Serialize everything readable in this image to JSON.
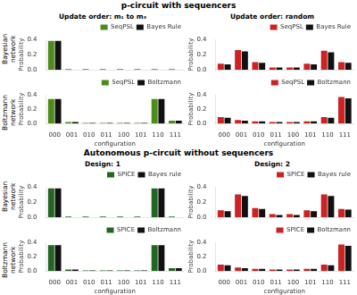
{
  "chart_data": [
    {
      "type": "bar",
      "annotations": [
        "p-circuit with sequencers"
      ],
      "title": "Update order: m₁ to m₃",
      "subtitle": "Bayesian\nnetwork",
      "categories": [
        "000",
        "001",
        "010",
        "011",
        "100",
        "101",
        "110",
        "111"
      ],
      "series": [
        {
          "name": "SeqPSL",
          "color": "#4c8c1a",
          "values": [
            0.38,
            0.01,
            0.01,
            0.01,
            0.01,
            0.01,
            0.01,
            0.01
          ]
        },
        {
          "name": "Bayes Rule",
          "color": "#111111",
          "values": [
            0.38,
            0.0,
            0.0,
            0.0,
            0.0,
            0.0,
            0.0,
            0.0
          ]
        }
      ],
      "ylabel": "Probability",
      "ylim": [
        0,
        0.4
      ],
      "yticks": [
        {
          "value": 0,
          "label": "0.0"
        },
        0.2,
        0.4
      ],
      "grid": false,
      "legend": "upper right",
      "tick_labels": "y"
    },
    {
      "type": "bar",
      "title": "Update order: random",
      "categories": [
        "000",
        "001",
        "010",
        "011",
        "100",
        "101",
        "110",
        "111"
      ],
      "series": [
        {
          "name": "SeqPSL",
          "color": "#cc2222",
          "values": [
            0.08,
            0.26,
            0.1,
            0.03,
            0.03,
            0.08,
            0.25,
            0.1
          ]
        },
        {
          "name": "Bayes Rule",
          "color": "#111111",
          "values": [
            0.07,
            0.24,
            0.09,
            0.03,
            0.03,
            0.07,
            0.23,
            0.09
          ]
        }
      ],
      "ylabel": "Probability",
      "ylim": [
        0,
        0.4
      ],
      "yticks": [
        {
          "value": 0,
          "label": "0.0"
        },
        0.2,
        0.4
      ],
      "grid": false,
      "legend": "upper right",
      "tick_labels": "y"
    },
    {
      "type": "bar",
      "subtitle": "Boltzmann\nnetwork",
      "categories": [
        "000",
        "001",
        "010",
        "011",
        "100",
        "101",
        "110",
        "111"
      ],
      "series": [
        {
          "name": "SeqPSL",
          "color": "#4c8c1a",
          "values": [
            0.34,
            0.02,
            0.01,
            0.01,
            0.01,
            0.01,
            0.34,
            0.04
          ]
        },
        {
          "name": "Boltzmann",
          "color": "#111111",
          "values": [
            0.34,
            0.02,
            0.01,
            0.01,
            0.01,
            0.01,
            0.34,
            0.04
          ]
        }
      ],
      "xlabel": "configuration",
      "ylabel": "Probability",
      "ylim": [
        0,
        0.4
      ],
      "yticks": [
        {
          "value": 0,
          "label": "0.0"
        },
        0.2,
        0.4
      ],
      "grid": false,
      "legend": "upper right"
    },
    {
      "type": "bar",
      "categories": [
        "000",
        "001",
        "010",
        "011",
        "100",
        "101",
        "110",
        "111"
      ],
      "series": [
        {
          "name": "SeqPSL",
          "color": "#cc2222",
          "values": [
            0.09,
            0.05,
            0.03,
            0.02,
            0.02,
            0.03,
            0.09,
            0.37
          ]
        },
        {
          "name": "Boltzmann",
          "color": "#111111",
          "values": [
            0.08,
            0.04,
            0.03,
            0.02,
            0.02,
            0.03,
            0.08,
            0.35
          ]
        }
      ],
      "xlabel": "configuration",
      "ylabel": "Probability",
      "ylim": [
        0,
        0.4
      ],
      "yticks": [
        {
          "value": 0,
          "label": "0.0"
        },
        0.2,
        0.4
      ],
      "grid": false,
      "legend": "upper right"
    },
    {
      "type": "bar",
      "annotations": [
        "Autonomous p-circuit without sequencers"
      ],
      "title": "Design: 1",
      "subtitle": "Bayesian\nnetwork",
      "categories": [
        "000",
        "001",
        "010",
        "011",
        "100",
        "101",
        "110",
        "111"
      ],
      "series": [
        {
          "name": "SPICE",
          "color": "#226622",
          "values": [
            0.38,
            0.01,
            0.01,
            0.01,
            0.01,
            0.01,
            0.38,
            0.01
          ]
        },
        {
          "name": "Bayes rule",
          "color": "#111111",
          "values": [
            0.38,
            0.0,
            0.0,
            0.0,
            0.0,
            0.0,
            0.38,
            0.0
          ]
        }
      ],
      "ylabel": "Probability",
      "ylim": [
        0,
        0.4
      ],
      "yticks": [
        {
          "value": 0,
          "label": "0.0"
        },
        0.2,
        0.4
      ],
      "grid": false,
      "legend": "upper right",
      "tick_labels": "y"
    },
    {
      "type": "bar",
      "title": "Design: 2",
      "categories": [
        "000",
        "001",
        "010",
        "011",
        "100",
        "101",
        "110",
        "111"
      ],
      "series": [
        {
          "name": "SPICE",
          "color": "#cc2222",
          "values": [
            0.09,
            0.3,
            0.12,
            0.04,
            0.04,
            0.09,
            0.3,
            0.11
          ]
        },
        {
          "name": "Bayes rule",
          "color": "#111111",
          "values": [
            0.08,
            0.28,
            0.11,
            0.03,
            0.03,
            0.08,
            0.28,
            0.1
          ]
        }
      ],
      "ylabel": "Probability",
      "ylim": [
        0,
        0.4
      ],
      "yticks": [
        {
          "value": 0,
          "label": "0.0"
        },
        0.2,
        0.4
      ],
      "grid": false,
      "legend": "upper right",
      "tick_labels": "y"
    },
    {
      "type": "bar",
      "subtitle": "Boltzmann\nnetwork",
      "categories": [
        "000",
        "001",
        "010",
        "011",
        "100",
        "101",
        "110",
        "111"
      ],
      "series": [
        {
          "name": "SPICE",
          "color": "#226622",
          "values": [
            0.36,
            0.02,
            0.01,
            0.01,
            0.01,
            0.01,
            0.36,
            0.04
          ]
        },
        {
          "name": "Boltzmann",
          "color": "#111111",
          "values": [
            0.36,
            0.02,
            0.01,
            0.01,
            0.01,
            0.01,
            0.36,
            0.04
          ]
        }
      ],
      "xlabel": "configuration",
      "ylabel": "Probability",
      "ylim": [
        0,
        0.4
      ],
      "yticks": [
        {
          "value": 0,
          "label": "0.0"
        },
        0.2,
        0.4
      ],
      "grid": false,
      "legend": "upper right"
    },
    {
      "type": "bar",
      "categories": [
        "000",
        "001",
        "010",
        "011",
        "100",
        "101",
        "110",
        "111"
      ],
      "series": [
        {
          "name": "SPICE",
          "color": "#cc2222",
          "values": [
            0.09,
            0.05,
            0.03,
            0.02,
            0.02,
            0.03,
            0.09,
            0.37
          ]
        },
        {
          "name": "Boltzmann",
          "color": "#111111",
          "values": [
            0.08,
            0.04,
            0.03,
            0.02,
            0.02,
            0.03,
            0.08,
            0.35
          ]
        }
      ],
      "xlabel": "configuration",
      "ylabel": "Probability",
      "ylim": [
        0,
        0.4
      ],
      "yticks": [
        {
          "value": 0,
          "label": "0.0"
        },
        0.2,
        0.4
      ],
      "grid": false,
      "legend": "upper right"
    }
  ]
}
